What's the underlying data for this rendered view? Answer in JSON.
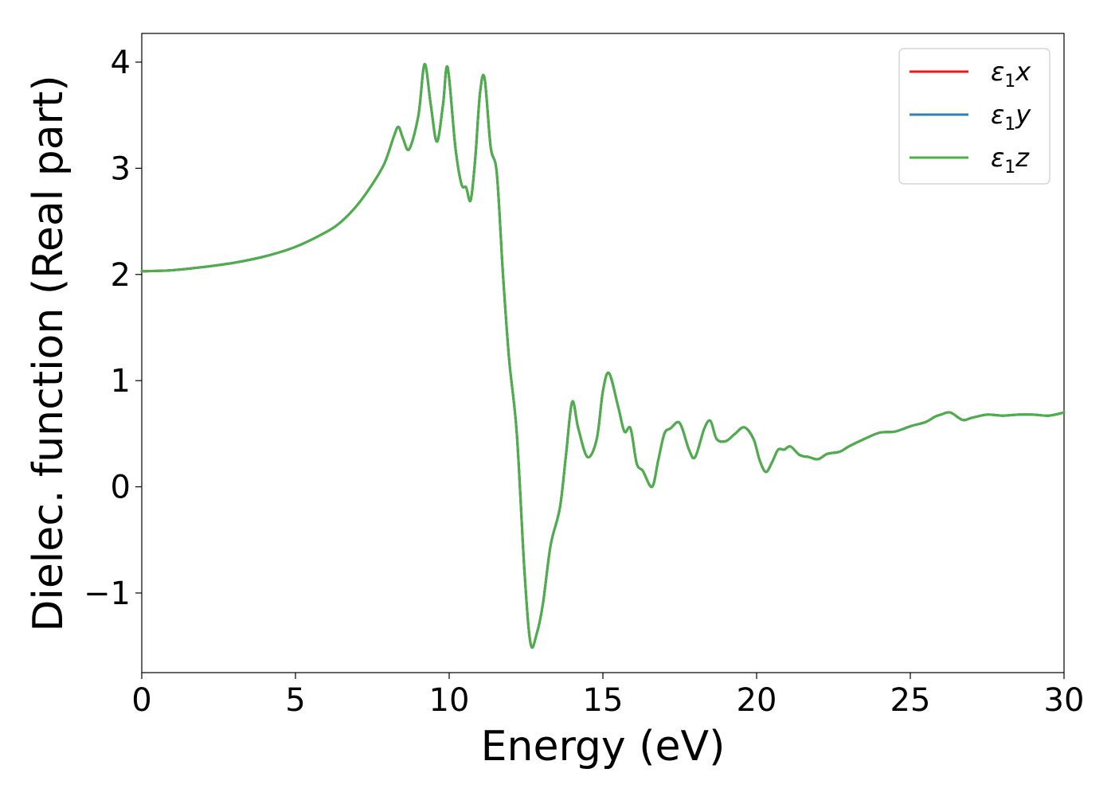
{
  "chart_data": {
    "type": "line",
    "xlabel": "Energy (eV)",
    "ylabel": "Dielec. function (Real part)",
    "xlim": [
      0,
      30
    ],
    "ylim": [
      -1.75,
      4.27
    ],
    "x_ticks": [
      0,
      5,
      10,
      15,
      20,
      25,
      30
    ],
    "x_tick_labels": [
      "0",
      "5",
      "10",
      "15",
      "20",
      "25",
      "30"
    ],
    "y_ticks": [
      -1,
      0,
      1,
      2,
      3,
      4
    ],
    "y_tick_labels": [
      "−1",
      "0",
      "1",
      "2",
      "3",
      "4"
    ],
    "grid": false,
    "legend_position": "top-right",
    "colors": {
      "x": "#e41a1c",
      "y": "#377eb8",
      "z": "#4daf4a"
    },
    "series": [
      {
        "name": "ε1x",
        "legend_symbol": "ε",
        "legend_sub": "1",
        "legend_var": "x",
        "color": "#e41a1c"
      },
      {
        "name": "ε1y",
        "legend_symbol": "ε",
        "legend_sub": "1",
        "legend_var": "y",
        "color": "#377eb8"
      },
      {
        "name": "ε1z",
        "legend_symbol": "ε",
        "legend_sub": "1",
        "legend_var": "z",
        "color": "#4daf4a"
      }
    ],
    "shared_points": {
      "x": [
        0,
        1,
        2,
        3,
        4,
        5,
        6,
        6.5,
        7,
        7.5,
        7.9,
        8.2,
        8.35,
        8.5,
        8.7,
        9.0,
        9.2,
        9.4,
        9.6,
        9.8,
        9.95,
        10.2,
        10.4,
        10.55,
        10.7,
        10.85,
        11.0,
        11.15,
        11.35,
        11.55,
        11.75,
        11.95,
        12.2,
        12.45,
        12.65,
        12.85,
        13.05,
        13.3,
        13.6,
        13.8,
        14.0,
        14.2,
        14.5,
        14.8,
        15.0,
        15.2,
        15.5,
        15.7,
        15.9,
        16.1,
        16.3,
        16.6,
        16.8,
        17.0,
        17.2,
        17.5,
        17.8,
        18.0,
        18.3,
        18.5,
        18.7,
        19.0,
        19.3,
        19.6,
        19.9,
        20.1,
        20.3,
        20.5,
        20.7,
        20.9,
        21.1,
        21.4,
        21.7,
        22.0,
        22.3,
        22.7,
        23.0,
        23.5,
        24.0,
        24.5,
        25.0,
        25.5,
        25.8,
        26.0,
        26.3,
        26.7,
        27.0,
        27.5,
        28.0,
        28.5,
        29.0,
        29.5,
        30.0
      ],
      "y": [
        2.03,
        2.04,
        2.07,
        2.11,
        2.17,
        2.26,
        2.4,
        2.5,
        2.65,
        2.85,
        3.05,
        3.3,
        3.39,
        3.28,
        3.18,
        3.5,
        3.98,
        3.6,
        3.25,
        3.6,
        3.95,
        3.2,
        2.85,
        2.82,
        2.7,
        3.1,
        3.7,
        3.85,
        3.2,
        2.95,
        2.0,
        1.2,
        0.5,
        -0.8,
        -1.48,
        -1.38,
        -1.1,
        -0.55,
        -0.2,
        0.3,
        0.8,
        0.55,
        0.28,
        0.45,
        0.9,
        1.07,
        0.75,
        0.52,
        0.55,
        0.22,
        0.15,
        0.0,
        0.25,
        0.5,
        0.55,
        0.6,
        0.35,
        0.28,
        0.55,
        0.62,
        0.45,
        0.43,
        0.5,
        0.56,
        0.45,
        0.25,
        0.14,
        0.23,
        0.35,
        0.35,
        0.38,
        0.3,
        0.28,
        0.26,
        0.31,
        0.33,
        0.38,
        0.45,
        0.51,
        0.52,
        0.57,
        0.61,
        0.66,
        0.68,
        0.7,
        0.63,
        0.65,
        0.68,
        0.67,
        0.68,
        0.68,
        0.67,
        0.7
      ]
    }
  }
}
